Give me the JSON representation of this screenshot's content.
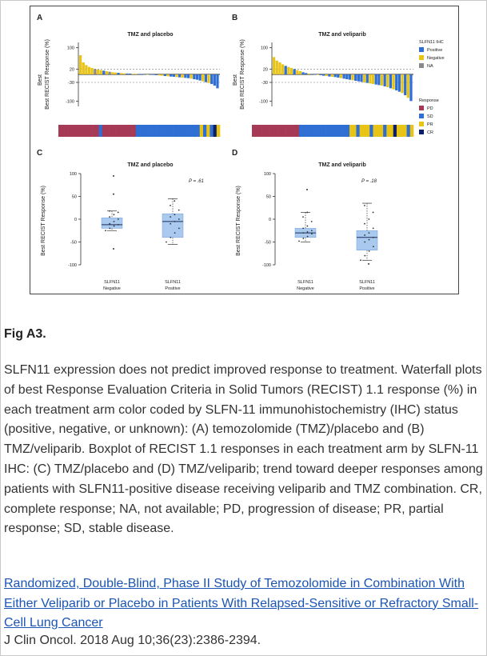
{
  "figure_label": "Fig A3.",
  "caption": "SLFN11 expression does not predict improved response to treatment. Waterfall plots of best Response Evaluation Criteria in Solid Tumors (RECIST) 1.1 response (%) in each treatment arm color coded by SLFN-11 immunohistochemistry (IHC) status (positive, negative, or unknown): (A) temozolomide (TMZ)/placebo and (B) TMZ/veliparib. Boxplot of RECIST 1.1 responses in each treatment arm by SLFN-11 IHC: (C) TMZ/placebo and (D) TMZ/veliparib; trend toward deeper responses among patients with SLFN11-positive disease receiving veliparib and TMZ combination. CR, complete response; NA, not available; PD, progression of disease; PR, partial response; SD, stable disease.",
  "article_link": "Randomized, Double-Blind, Phase II Study of Temozolomide in Combination With Either Veliparib or Placebo in Patients With Relapsed-Sensitive or Refractory Small-Cell Lung Cancer",
  "journal": "J Clin Oncol. 2018 Aug 10;36(23):2386-2394.",
  "colors": {
    "positive": "#2f6fd4",
    "negative": "#e8c417",
    "na": "#8a8a8a",
    "pd": "#a63a56",
    "sd": "#2f6fd4",
    "pr": "#e8c417",
    "cr": "#0a1f66",
    "box": "#aac9ef"
  },
  "legend": {
    "ihc_title": "SLFN11 IHC",
    "ihc_items": [
      "Positive",
      "Negative",
      "NA"
    ],
    "response_title": "Response",
    "response_items": [
      "PD",
      "SD",
      "PR",
      "CR"
    ]
  },
  "chart_data": [
    {
      "panel": "A",
      "type": "bar",
      "title": "TMZ and placebo",
      "ylabel": "Best RECIST Response (%)",
      "ylim": [
        -120,
        120
      ],
      "y_ticks": [
        100,
        20,
        -30,
        -100
      ],
      "values": [
        72,
        45,
        35,
        28,
        24,
        20,
        18,
        16,
        14,
        12,
        10,
        8,
        7,
        6,
        5,
        4,
        3,
        3,
        2,
        2,
        1,
        1,
        0,
        0,
        -1,
        -2,
        -3,
        -4,
        -5,
        -6,
        -7,
        -8,
        -9,
        -10,
        -11,
        -12,
        -13,
        -14,
        -16,
        -18,
        -20,
        -23,
        -26,
        -29,
        -32,
        -36,
        -42,
        -52
      ],
      "ihc": [
        "N",
        "N",
        "N",
        "N",
        "N",
        "NA",
        "N",
        "N",
        "P",
        "N",
        "NA",
        "N",
        "N",
        "P",
        "N",
        "N",
        "P",
        "P",
        "N",
        "N",
        "P",
        "P",
        "P",
        "N",
        "P",
        "P",
        "P",
        "N",
        "N",
        "P",
        "N",
        "P",
        "P",
        "N",
        "P",
        "N",
        "P",
        "P",
        "N",
        "P",
        "P",
        "P",
        "N",
        "P",
        "N",
        "P",
        "P",
        "P"
      ],
      "response_bar": [
        "PD",
        "PD",
        "PD",
        "PD",
        "PD",
        "PD",
        "PD",
        "PD",
        "PD",
        "PD",
        "PD",
        "PD",
        "SD",
        "PD",
        "PD",
        "PD",
        "PD",
        "PD",
        "PD",
        "PD",
        "PD",
        "PD",
        "PD",
        "SD",
        "SD",
        "SD",
        "SD",
        "SD",
        "SD",
        "SD",
        "SD",
        "SD",
        "SD",
        "SD",
        "SD",
        "SD",
        "SD",
        "SD",
        "SD",
        "SD",
        "SD",
        "SD",
        "PR",
        "SD",
        "PR",
        "SD",
        "CR",
        "PR"
      ]
    },
    {
      "panel": "B",
      "type": "bar",
      "title": "TMZ and veliparib",
      "ylabel": "Best RECIST Response (%)",
      "ylim": [
        -120,
        120
      ],
      "y_ticks": [
        100,
        20,
        -30,
        -100
      ],
      "values": [
        65,
        52,
        45,
        38,
        32,
        28,
        24,
        20,
        16,
        12,
        8,
        5,
        3,
        2,
        0,
        -2,
        -3,
        -5,
        -6,
        -8,
        -9,
        -10,
        -12,
        -14,
        -16,
        -18,
        -20,
        -22,
        -24,
        -26,
        -28,
        -30,
        -32,
        -34,
        -36,
        -38,
        -40,
        -42,
        -45,
        -48,
        -52,
        -56,
        -60,
        -65,
        -70,
        -78,
        -88,
        -100
      ],
      "ihc": [
        "N",
        "N",
        "N",
        "N",
        "P",
        "N",
        "N",
        "P",
        "N",
        "N",
        "P",
        "P",
        "N",
        "P",
        "P",
        "N",
        "P",
        "P",
        "N",
        "P",
        "N",
        "P",
        "P",
        "N",
        "P",
        "P",
        "P",
        "N",
        "P",
        "P",
        "P",
        "N",
        "P",
        "N",
        "N",
        "P",
        "P",
        "N",
        "P",
        "N",
        "P",
        "N",
        "P",
        "P",
        "N",
        "P",
        "N",
        "P"
      ],
      "response_bar": [
        "PD",
        "PD",
        "PD",
        "PD",
        "PD",
        "PD",
        "PD",
        "PD",
        "PD",
        "PD",
        "PD",
        "PD",
        "PD",
        "PD",
        "SD",
        "SD",
        "SD",
        "SD",
        "SD",
        "SD",
        "SD",
        "SD",
        "SD",
        "SD",
        "SD",
        "SD",
        "SD",
        "SD",
        "SD",
        "PR",
        "PR",
        "SD",
        "PR",
        "PR",
        "PR",
        "SD",
        "PR",
        "PR",
        "PR",
        "SD",
        "PR",
        "PR",
        "CR",
        "PR",
        "PR",
        "PR",
        "SD",
        "PR"
      ]
    },
    {
      "panel": "C",
      "type": "box",
      "title": "TMZ and placebo",
      "pvalue": "P = .61",
      "ylabel": "Best RECIST Response (%)",
      "ylim": [
        -100,
        100
      ],
      "y_ticks": [
        100,
        50,
        0,
        -50,
        -100
      ],
      "categories": [
        "SLFN11 Negative",
        "SLFN11 Positive"
      ],
      "boxes": [
        {
          "min": -25,
          "q1": -20,
          "median": -12,
          "q3": 3,
          "max": 18,
          "points": [
            -25,
            -20,
            -15,
            -12,
            -10,
            -5,
            0,
            5,
            10,
            15,
            18
          ],
          "outliers": [
            95,
            -65,
            55
          ]
        },
        {
          "min": -55,
          "q1": -40,
          "median": -5,
          "q3": 12,
          "max": 45,
          "points": [
            -50,
            -40,
            -30,
            -20,
            -10,
            -5,
            0,
            5,
            10,
            20,
            30,
            40
          ],
          "outliers": []
        }
      ]
    },
    {
      "panel": "D",
      "type": "box",
      "title": "TMZ and veliparib",
      "pvalue": "P = .18",
      "ylabel": "Best RECIST Response (%)",
      "ylim": [
        -100,
        100
      ],
      "y_ticks": [
        100,
        50,
        0,
        -50,
        -100
      ],
      "categories": [
        "SLFN11 Negative",
        "SLFN11 Positive"
      ],
      "boxes": [
        {
          "min": -50,
          "q1": -40,
          "median": -30,
          "q3": -20,
          "max": 15,
          "points": [
            -48,
            -42,
            -38,
            -32,
            -30,
            -28,
            -25,
            -20,
            -15,
            -5,
            5,
            15
          ],
          "outliers": [
            65
          ]
        },
        {
          "min": -90,
          "q1": -68,
          "median": -40,
          "q3": -25,
          "max": 35,
          "points": [
            -90,
            -80,
            -70,
            -60,
            -50,
            -45,
            -40,
            -35,
            -30,
            -20,
            -10,
            0,
            15,
            30
          ],
          "outliers": [
            -98
          ]
        }
      ]
    }
  ],
  "panel_letters": [
    "A",
    "B",
    "C",
    "D"
  ]
}
